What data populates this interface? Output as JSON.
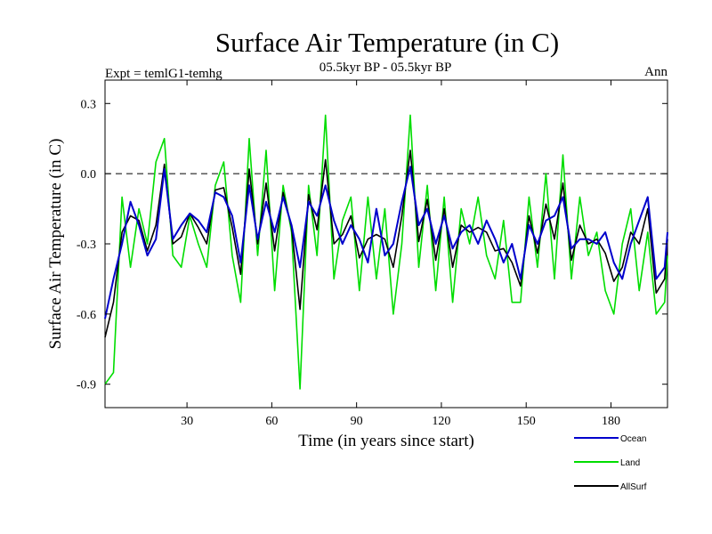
{
  "chart_data": {
    "type": "line",
    "title": "Surface Air Temperature (in C)",
    "subtitle": "05.5kyr BP - 05.5kyr BP",
    "left_label": "Expt = temlG1-temhg",
    "right_label": "Ann",
    "xlabel": "Time (in years since start)",
    "ylabel": "Surface Air Temperature (in C)",
    "xlim": [
      1,
      200
    ],
    "ylim": [
      -1.0,
      0.4
    ],
    "x_ticks": [
      30,
      60,
      90,
      120,
      150,
      180
    ],
    "y_ticks": [
      0.3,
      0.0,
      -0.3,
      -0.6,
      -0.9
    ],
    "x_tick_labels": [
      "30",
      "60",
      "90",
      "120",
      "150",
      "180"
    ],
    "y_tick_labels": [
      "0.3",
      "0.0",
      "-0.3",
      "-0.6",
      "-0.9"
    ],
    "reference_line": {
      "y": 0.0,
      "style": "dashed"
    },
    "legend_position": "bottom-right",
    "series": [
      {
        "name": "Ocean",
        "color": "#0000cc",
        "x": [
          1,
          4,
          7,
          10,
          13,
          16,
          19,
          22,
          25,
          28,
          31,
          34,
          37,
          40,
          43,
          46,
          49,
          52,
          55,
          58,
          61,
          64,
          67,
          70,
          73,
          76,
          79,
          82,
          85,
          88,
          91,
          94,
          97,
          100,
          103,
          106,
          109,
          112,
          115,
          118,
          121,
          124,
          127,
          130,
          133,
          136,
          139,
          142,
          145,
          148,
          151,
          154,
          157,
          160,
          163,
          166,
          169,
          172,
          175,
          178,
          181,
          184,
          187,
          190,
          193,
          196,
          199,
          200
        ],
        "values": [
          -0.62,
          -0.45,
          -0.3,
          -0.12,
          -0.22,
          -0.35,
          -0.28,
          0.02,
          -0.28,
          -0.22,
          -0.17,
          -0.2,
          -0.25,
          -0.08,
          -0.1,
          -0.18,
          -0.38,
          -0.05,
          -0.28,
          -0.12,
          -0.25,
          -0.1,
          -0.22,
          -0.4,
          -0.12,
          -0.18,
          -0.05,
          -0.2,
          -0.3,
          -0.22,
          -0.28,
          -0.38,
          -0.15,
          -0.35,
          -0.3,
          -0.12,
          0.03,
          -0.22,
          -0.15,
          -0.3,
          -0.18,
          -0.32,
          -0.25,
          -0.22,
          -0.3,
          -0.2,
          -0.28,
          -0.38,
          -0.3,
          -0.45,
          -0.22,
          -0.3,
          -0.2,
          -0.18,
          -0.1,
          -0.32,
          -0.28,
          -0.28,
          -0.3,
          -0.25,
          -0.38,
          -0.45,
          -0.3,
          -0.2,
          -0.1,
          -0.45,
          -0.4,
          -0.25
        ]
      },
      {
        "name": "Land",
        "color": "#00dd00",
        "x": [
          1,
          4,
          7,
          10,
          13,
          16,
          19,
          22,
          25,
          28,
          31,
          34,
          37,
          40,
          43,
          46,
          49,
          52,
          55,
          58,
          61,
          64,
          67,
          70,
          73,
          76,
          79,
          82,
          85,
          88,
          91,
          94,
          97,
          100,
          103,
          106,
          109,
          112,
          115,
          118,
          121,
          124,
          127,
          130,
          133,
          136,
          139,
          142,
          145,
          148,
          151,
          154,
          157,
          160,
          163,
          166,
          169,
          172,
          175,
          178,
          181,
          184,
          187,
          190,
          193,
          196,
          199,
          200
        ],
        "values": [
          -0.9,
          -0.85,
          -0.1,
          -0.4,
          -0.15,
          -0.3,
          0.05,
          0.15,
          -0.35,
          -0.4,
          -0.18,
          -0.3,
          -0.4,
          -0.05,
          0.05,
          -0.35,
          -0.55,
          0.15,
          -0.35,
          0.1,
          -0.5,
          -0.05,
          -0.25,
          -0.92,
          -0.05,
          -0.35,
          0.25,
          -0.45,
          -0.2,
          -0.1,
          -0.5,
          -0.1,
          -0.45,
          -0.15,
          -0.6,
          -0.3,
          0.25,
          -0.4,
          -0.05,
          -0.5,
          -0.1,
          -0.55,
          -0.15,
          -0.3,
          -0.1,
          -0.35,
          -0.45,
          -0.2,
          -0.55,
          -0.55,
          -0.1,
          -0.4,
          0.0,
          -0.45,
          0.08,
          -0.45,
          -0.1,
          -0.35,
          -0.25,
          -0.5,
          -0.6,
          -0.3,
          -0.15,
          -0.5,
          -0.25,
          -0.6,
          -0.55,
          -0.35
        ]
      },
      {
        "name": "AllSurf",
        "color": "#000000",
        "x": [
          1,
          4,
          7,
          10,
          13,
          16,
          19,
          22,
          25,
          28,
          31,
          34,
          37,
          40,
          43,
          46,
          49,
          52,
          55,
          58,
          61,
          64,
          67,
          70,
          73,
          76,
          79,
          82,
          85,
          88,
          91,
          94,
          97,
          100,
          103,
          106,
          109,
          112,
          115,
          118,
          121,
          124,
          127,
          130,
          133,
          136,
          139,
          142,
          145,
          148,
          151,
          154,
          157,
          160,
          163,
          166,
          169,
          172,
          175,
          178,
          181,
          184,
          187,
          190,
          193,
          196,
          199,
          200
        ],
        "values": [
          -0.7,
          -0.55,
          -0.25,
          -0.18,
          -0.2,
          -0.33,
          -0.22,
          0.04,
          -0.3,
          -0.27,
          -0.17,
          -0.23,
          -0.3,
          -0.07,
          -0.06,
          -0.23,
          -0.43,
          0.02,
          -0.3,
          -0.04,
          -0.33,
          -0.08,
          -0.23,
          -0.58,
          -0.09,
          -0.24,
          0.06,
          -0.3,
          -0.26,
          -0.18,
          -0.36,
          -0.28,
          -0.26,
          -0.28,
          -0.4,
          -0.18,
          0.1,
          -0.29,
          -0.11,
          -0.37,
          -0.15,
          -0.4,
          -0.22,
          -0.25,
          -0.23,
          -0.25,
          -0.33,
          -0.32,
          -0.38,
          -0.48,
          -0.18,
          -0.34,
          -0.13,
          -0.28,
          -0.04,
          -0.37,
          -0.22,
          -0.3,
          -0.28,
          -0.34,
          -0.46,
          -0.4,
          -0.25,
          -0.3,
          -0.15,
          -0.51,
          -0.45,
          -0.28
        ]
      }
    ]
  }
}
